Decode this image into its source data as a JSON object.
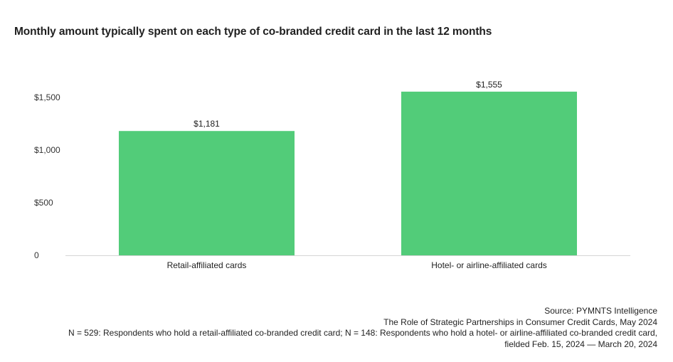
{
  "chart_data": {
    "type": "bar",
    "title": "Monthly amount typically spent on each type of co-branded credit card in the last 12 months",
    "categories": [
      "Retail-affiliated cards",
      "Hotel- or airline-affiliated cards"
    ],
    "values": [
      1181,
      1555
    ],
    "value_labels": [
      "$1,181",
      "$1,555"
    ],
    "ylim": [
      0,
      1500
    ],
    "yticks": [
      0,
      500,
      1000,
      1500
    ],
    "ytick_labels": [
      "0",
      "$500",
      "$1,000",
      "$1,500"
    ],
    "xlabel": "",
    "ylabel": "",
    "grid": false,
    "colors": {
      "bar": "#52cc79",
      "baseline": "#d4d4d4"
    }
  },
  "footer": {
    "source": "Source: PYMNTS Intelligence",
    "report": "The Role of Strategic Partnerships in Consumer Credit Cards, May 2024",
    "sample": "N = 529: Respondents who hold a retail-affiliated co-branded credit card; N = 148: Respondents who hold a hotel- or airline-affiliated co-branded credit card,",
    "fielded": "fielded Feb. 15, 2024 — March 20, 2024"
  }
}
